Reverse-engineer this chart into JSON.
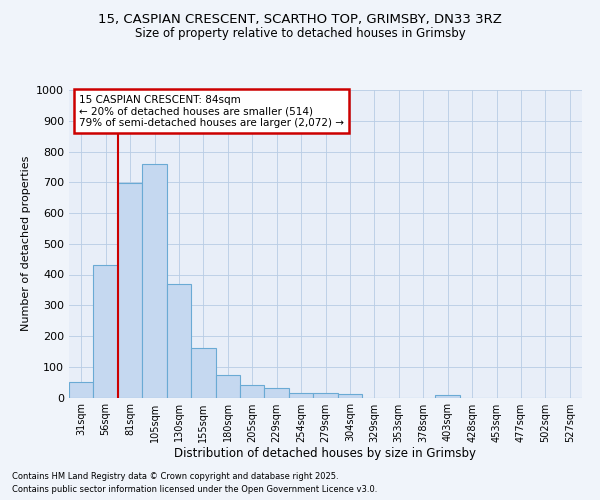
{
  "title_line1": "15, CASPIAN CRESCENT, SCARTHO TOP, GRIMSBY, DN33 3RZ",
  "title_line2": "Size of property relative to detached houses in Grimsby",
  "xlabel": "Distribution of detached houses by size in Grimsby",
  "ylabel": "Number of detached properties",
  "annotation_title": "15 CASPIAN CRESCENT: 84sqm",
  "annotation_line2": "← 20% of detached houses are smaller (514)",
  "annotation_line3": "79% of semi-detached houses are larger (2,072) →",
  "footer_line1": "Contains HM Land Registry data © Crown copyright and database right 2025.",
  "footer_line2": "Contains public sector information licensed under the Open Government Licence v3.0.",
  "bin_labels": [
    "31sqm",
    "56sqm",
    "81sqm",
    "105sqm",
    "130sqm",
    "155sqm",
    "180sqm",
    "205sqm",
    "229sqm",
    "254sqm",
    "279sqm",
    "304sqm",
    "329sqm",
    "353sqm",
    "378sqm",
    "403sqm",
    "428sqm",
    "453sqm",
    "477sqm",
    "502sqm",
    "527sqm"
  ],
  "bar_values": [
    52,
    430,
    697,
    758,
    370,
    160,
    73,
    40,
    30,
    15,
    15,
    12,
    0,
    0,
    0,
    8,
    0,
    0,
    0,
    0,
    0
  ],
  "bar_color": "#c5d8f0",
  "bar_edge_color": "#6aaad4",
  "vline_index": 2,
  "vline_color": "#cc0000",
  "annotation_box_color": "#ffffff",
  "annotation_box_edge": "#cc0000",
  "ylim": [
    0,
    1000
  ],
  "yticks": [
    0,
    100,
    200,
    300,
    400,
    500,
    600,
    700,
    800,
    900,
    1000
  ],
  "grid_color": "#b8cce4",
  "background_color": "#f0f4fa",
  "plot_bg_color": "#e8eef8"
}
